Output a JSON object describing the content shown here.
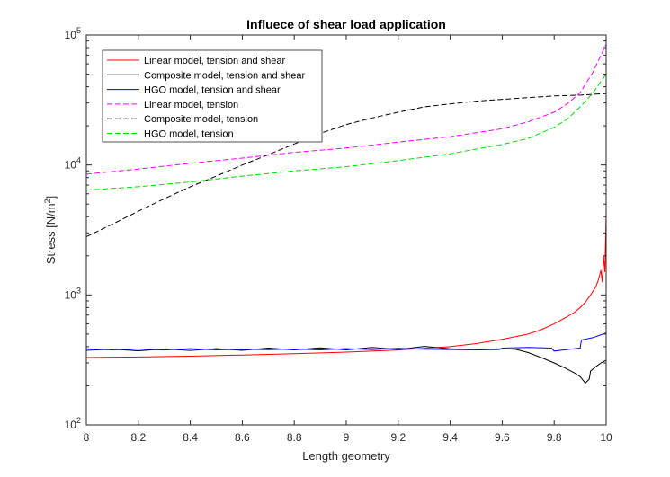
{
  "chart_data": {
    "type": "line",
    "title": "Influece of shear load application",
    "xlabel": "Length geometry",
    "ylabel_main": "Stress [N/m",
    "ylabel_sup": "2",
    "ylabel_end": "]",
    "xlim": [
      8,
      10
    ],
    "ylim": [
      100,
      100000
    ],
    "yscale": "log",
    "xticks": [
      "8",
      "8.2",
      "8.4",
      "8.6",
      "8.8",
      "9",
      "9.2",
      "9.4",
      "9.6",
      "9.8",
      "10"
    ],
    "yticks": [
      {
        "base": "10",
        "exp": "2"
      },
      {
        "base": "10",
        "exp": "3"
      },
      {
        "base": "10",
        "exp": "4"
      },
      {
        "base": "10",
        "exp": "5"
      }
    ],
    "legend_position": "top-left",
    "grid": false,
    "series": [
      {
        "name": "Linear model, tension and shear",
        "color": "#ff0000",
        "dash": "solid",
        "x": [
          8.0,
          8.2,
          8.4,
          8.6,
          8.8,
          9.0,
          9.2,
          9.4,
          9.5,
          9.6,
          9.7,
          9.75,
          9.8,
          9.85,
          9.88,
          9.9,
          9.92,
          9.94,
          9.96,
          9.97,
          9.98,
          9.985,
          9.99,
          9.995,
          10.0
        ],
        "y": [
          330,
          333,
          338,
          345,
          353,
          363,
          377,
          400,
          422,
          455,
          500,
          540,
          600,
          680,
          740,
          800,
          880,
          1000,
          1150,
          1300,
          1550,
          1250,
          2000,
          1500,
          4200
        ]
      },
      {
        "name": "Composite model, tension and shear",
        "color": "#000000",
        "dash": "solid",
        "x": [
          8.0,
          8.1,
          8.2,
          8.3,
          8.4,
          8.5,
          8.6,
          8.7,
          8.8,
          8.9,
          9.0,
          9.1,
          9.2,
          9.3,
          9.4,
          9.5,
          9.6,
          9.65,
          9.7,
          9.75,
          9.8,
          9.84,
          9.88,
          9.9,
          9.92,
          9.935,
          9.94,
          9.96,
          9.98,
          10.0
        ],
        "y": [
          375,
          382,
          372,
          384,
          374,
          386,
          375,
          390,
          378,
          392,
          378,
          395,
          380,
          402,
          385,
          380,
          385,
          382,
          360,
          330,
          300,
          275,
          250,
          235,
          210,
          225,
          260,
          280,
          300,
          315
        ]
      },
      {
        "name": "HGO model, tension and shear",
        "color": "#0000ff",
        "dash": "solid",
        "x": [
          8.0,
          8.1,
          8.2,
          8.3,
          8.4,
          8.5,
          8.6,
          8.7,
          8.8,
          8.9,
          9.0,
          9.1,
          9.2,
          9.3,
          9.4,
          9.5,
          9.59,
          9.6,
          9.7,
          9.79,
          9.8,
          9.9,
          9.905,
          9.95,
          10.0
        ],
        "y": [
          385,
          378,
          384,
          377,
          386,
          378,
          382,
          379,
          384,
          378,
          386,
          380,
          388,
          382,
          380,
          378,
          380,
          390,
          395,
          390,
          370,
          390,
          450,
          470,
          510
        ]
      },
      {
        "name": "Linear model, tension",
        "color": "#ff00ff",
        "dash": "dashed",
        "x": [
          8.0,
          8.2,
          8.4,
          8.6,
          8.8,
          9.0,
          9.2,
          9.4,
          9.6,
          9.7,
          9.8,
          9.85,
          9.9,
          9.95,
          10.0
        ],
        "y": [
          8500,
          9300,
          10300,
          11300,
          12500,
          13500,
          15000,
          16500,
          19000,
          21500,
          25500,
          29500,
          36000,
          52000,
          85000
        ]
      },
      {
        "name": "Composite model, tension",
        "color": "#000000",
        "dash": "dashed",
        "x": [
          8.0,
          8.1,
          8.2,
          8.3,
          8.4,
          8.5,
          8.6,
          8.7,
          8.8,
          8.9,
          9.0,
          9.1,
          9.2,
          9.3,
          9.4,
          9.5,
          9.6,
          9.7,
          9.8,
          9.9,
          10.0
        ],
        "y": [
          2800,
          3500,
          4400,
          5500,
          6800,
          8200,
          10000,
          12000,
          14500,
          17500,
          20500,
          23000,
          25500,
          28000,
          29500,
          31000,
          32000,
          33000,
          34000,
          34500,
          35500
        ]
      },
      {
        "name": "HGO model, tension",
        "color": "#00dd00",
        "dash": "dashed",
        "x": [
          8.0,
          8.2,
          8.4,
          8.6,
          8.8,
          9.0,
          9.2,
          9.4,
          9.6,
          9.7,
          9.8,
          9.85,
          9.9,
          9.95,
          10.0
        ],
        "y": [
          6400,
          6800,
          7400,
          8200,
          9000,
          9700,
          10800,
          12200,
          14400,
          16000,
          19500,
          22500,
          28000,
          36000,
          50000
        ]
      }
    ]
  }
}
